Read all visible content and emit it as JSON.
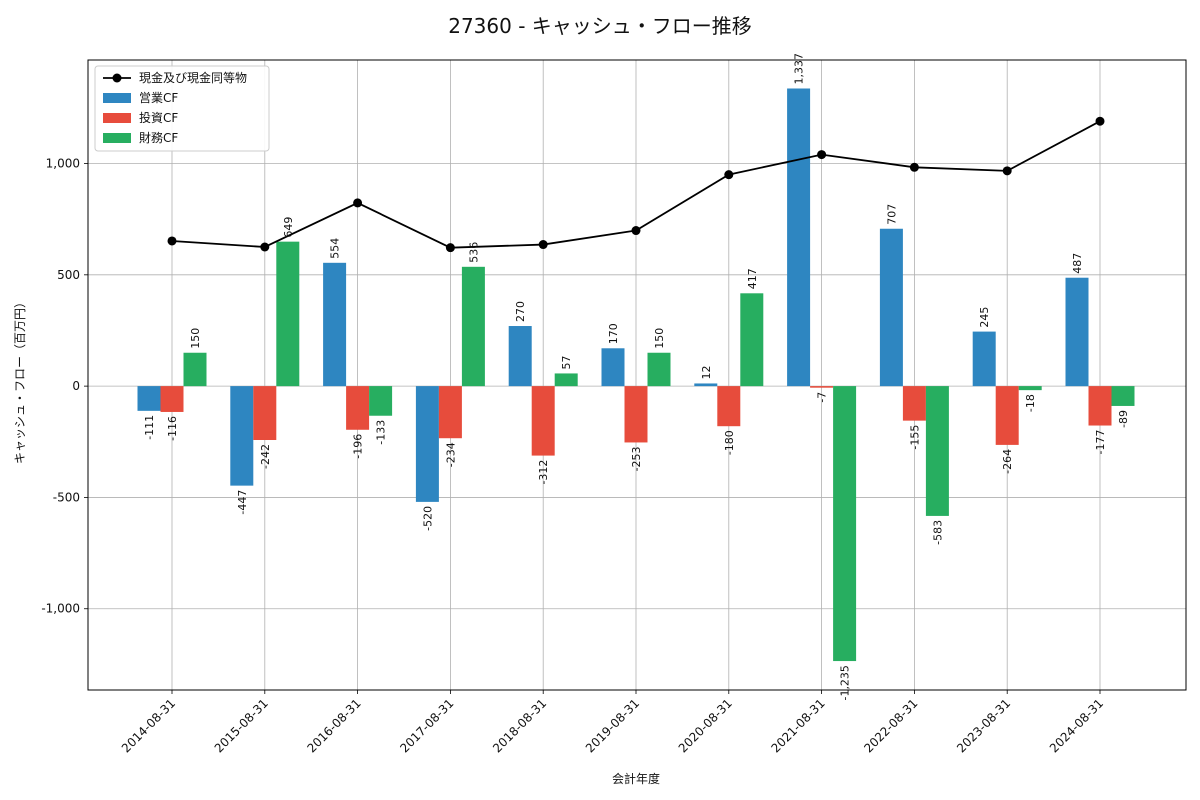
{
  "chart_data": {
    "type": "bar",
    "title": "27360 - キャッシュ・フロー推移",
    "xlabel": "会計年度",
    "ylabel": "キャッシュ・フロー（百万円）",
    "categories": [
      "2014-08-31",
      "2015-08-31",
      "2016-08-31",
      "2017-08-31",
      "2018-08-31",
      "2019-08-31",
      "2020-08-31",
      "2021-08-31",
      "2022-08-31",
      "2023-08-31",
      "2024-08-31"
    ],
    "ylim": [
      -1365,
      1465
    ],
    "yticks": [
      -1000,
      -500,
      0,
      500,
      1000
    ],
    "ytick_labels": [
      "-1,000",
      "-500",
      "0",
      "500",
      "1,000"
    ],
    "grid": true,
    "legend_position": "top-left",
    "series": [
      {
        "name": "営業CF",
        "kind": "bar",
        "color": "#2e86c1",
        "values": [
          -111,
          -447,
          554,
          -520,
          270,
          170,
          12,
          1337,
          707,
          245,
          487
        ],
        "labels": [
          "-111",
          "-447",
          "554",
          "-520",
          "270",
          "170",
          "12",
          "1,337",
          "707",
          "245",
          "487"
        ]
      },
      {
        "name": "投資CF",
        "kind": "bar",
        "color": "#e74c3c",
        "values": [
          -116,
          -242,
          -196,
          -234,
          -312,
          -253,
          -180,
          -7,
          -155,
          -264,
          -177
        ],
        "labels": [
          "-116",
          "-242",
          "-196",
          "-234",
          "-312",
          "-253",
          "-180",
          "-7",
          "-155",
          "-264",
          "-177"
        ]
      },
      {
        "name": "財務CF",
        "kind": "bar",
        "color": "#27ae60",
        "values": [
          150,
          649,
          -133,
          536,
          57,
          150,
          417,
          -1235,
          -583,
          -18,
          -89
        ],
        "labels": [
          "150",
          "649",
          "-133",
          "536",
          "57",
          "150",
          "417",
          "-1,235",
          "-583",
          "-18",
          "-89"
        ]
      },
      {
        "name": "現金及び現金同等物",
        "kind": "line",
        "color": "#000000",
        "values": [
          652,
          625,
          823,
          622,
          636,
          699,
          950,
          1040,
          983,
          967,
          1190
        ]
      }
    ]
  }
}
